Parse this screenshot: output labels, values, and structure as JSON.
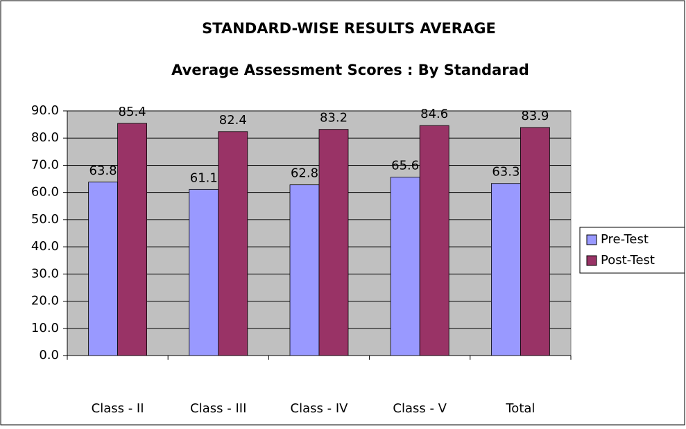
{
  "chart_data": {
    "type": "bar",
    "title": "STANDARD-WISE RESULTS   AVERAGE",
    "subtitle": "Average Assessment Scores : By Standarad",
    "categories": [
      "Class - II",
      "Class - III",
      "Class - IV",
      "Class - V",
      "Total"
    ],
    "series": [
      {
        "name": "Pre-Test",
        "color": "#9999ff",
        "values": [
          63.8,
          61.1,
          62.8,
          65.6,
          63.3
        ]
      },
      {
        "name": "Post-Test",
        "color": "#993366",
        "values": [
          85.4,
          82.4,
          83.2,
          84.6,
          83.9
        ]
      }
    ],
    "ylim": [
      0,
      90
    ],
    "yticks": [
      {
        "value": 0,
        "label": "0.0"
      },
      {
        "value": 10,
        "label": "10.0"
      },
      {
        "value": 20,
        "label": "20.0"
      },
      {
        "value": 30,
        "label": "30.0"
      },
      {
        "value": 40,
        "label": "40.0"
      },
      {
        "value": 50,
        "label": "50.0"
      },
      {
        "value": 60,
        "label": "60.0"
      },
      {
        "value": 70,
        "label": "70.0"
      },
      {
        "value": 80,
        "label": "80.0"
      },
      {
        "value": 90,
        "label": "90.0"
      }
    ],
    "grid": true,
    "legend": "right",
    "plot_background": "#c0c0c0"
  }
}
